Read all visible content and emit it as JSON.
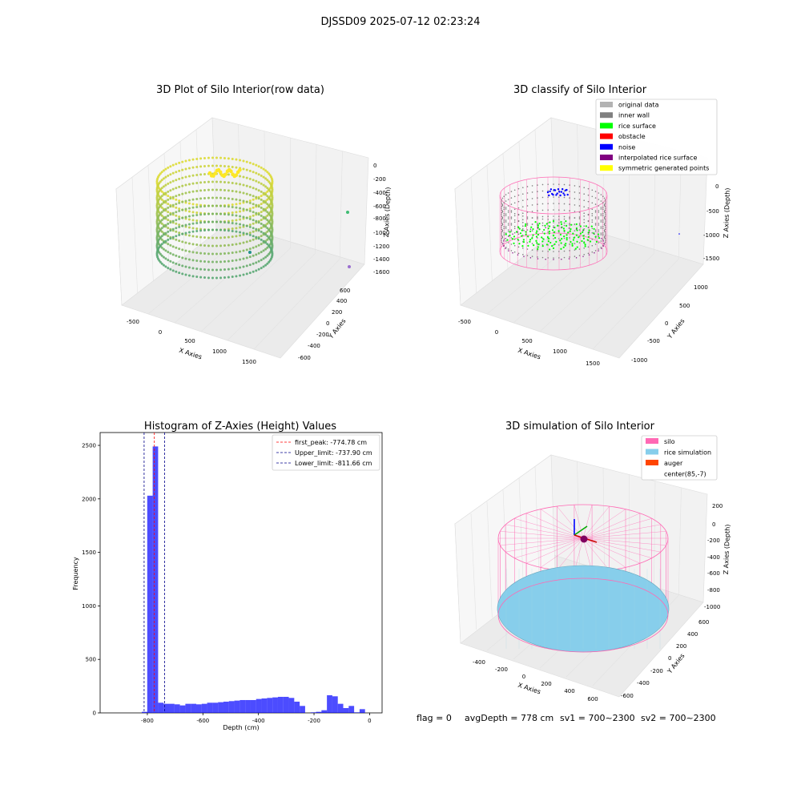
{
  "figure": {
    "suptitle": "DJSSD09 2025-07-12 02:23:24"
  },
  "status": {
    "flag": "flag = 0",
    "avg_depth": "avgDepth = 778 cm",
    "sv1": "sv1 = 700~2300",
    "sv2": "sv2 = 700~2300"
  },
  "colors": {
    "viridis_low": "#21918c",
    "viridis_high": "#fde725",
    "legend_original": "#b3b3b3",
    "legend_inner_wall": "#808080",
    "legend_rice_surface": "#00ff00",
    "legend_obstacle": "#ff0000",
    "legend_noise": "#0000ff",
    "legend_interpolated": "#800080",
    "legend_symmetric": "#ffff00",
    "silo": "#ff69b4",
    "rice_sim": "#87ceeb",
    "auger": "#ff4500",
    "hist_bar": "#0000ff",
    "first_peak_line": "#ff0000",
    "limit_line": "#00008b"
  },
  "chart_data": [
    {
      "type": "scatter",
      "title": "3D Plot of Silo Interior(row data)",
      "xlabel": "X Axies",
      "ylabel": "Y Axies",
      "zlabel": "Z Axies (Depth)",
      "xticks": [
        "-500",
        "0",
        "500",
        "1000",
        "1500"
      ],
      "yticks": [
        "-600",
        "-400",
        "-200",
        "0",
        "200",
        "400",
        "600"
      ],
      "zticks": [
        "0",
        "-200",
        "-400",
        "-600",
        "-800",
        "-1000",
        "-1200",
        "-1400",
        "-1600"
      ],
      "xlim": [
        -700,
        1800
      ],
      "ylim": [
        -650,
        650
      ],
      "zlim": [
        -1650,
        100
      ],
      "colormap": "viridis"
    },
    {
      "type": "scatter",
      "title": "3D classify of Silo Interior",
      "xlabel": "X Axies",
      "ylabel": "Y Axies",
      "zlabel": "Z Axies (Depth)",
      "xticks": [
        "-500",
        "0",
        "500",
        "1000",
        "1500"
      ],
      "yticks": [
        "-1000",
        "-500",
        "0",
        "500",
        "1000"
      ],
      "zticks": [
        "0",
        "-500",
        "-1000",
        "-1500"
      ],
      "legend": [
        "original data",
        "inner wall",
        "rice surface",
        "obstacle",
        "noise",
        "interpolated rice surface",
        "symmetric generated points"
      ],
      "legend_loc": "upper right"
    },
    {
      "type": "bar",
      "title": "Histogram of Z-Axies (Height) Values",
      "xlabel": "Depth (cm)",
      "ylabel": "Frequency",
      "xlim": [
        -970,
        45
      ],
      "ylim": [
        0,
        2620
      ],
      "xticks": [
        -800,
        -600,
        -400,
        -200,
        0
      ],
      "yticks": [
        0,
        500,
        1000,
        1500,
        2000,
        2500
      ],
      "bin_width": 19.6,
      "bin_starts": [
        -820,
        -800.4,
        -780.8,
        -761.2,
        -741.6,
        -722,
        -702.4,
        -682.8,
        -663.2,
        -643.6,
        -624,
        -604.4,
        -584.8,
        -565.2,
        -545.6,
        -526,
        -506.4,
        -486.8,
        -467.2,
        -447.6,
        -428,
        -408.4,
        -388.8,
        -369.2,
        -349.6,
        -330,
        -310.4,
        -290.8,
        -271.2,
        -251.6,
        -232,
        -212.4,
        -192.8,
        -173.2,
        -153.6,
        -134,
        -114.4,
        -94.8,
        -75.2,
        -55.6,
        -36,
        -16.4
      ],
      "values": [
        10,
        2030,
        2490,
        95,
        85,
        85,
        80,
        70,
        85,
        85,
        80,
        85,
        95,
        95,
        100,
        105,
        110,
        115,
        120,
        120,
        120,
        130,
        135,
        140,
        145,
        150,
        150,
        140,
        105,
        65,
        0,
        5,
        10,
        25,
        165,
        155,
        85,
        45,
        65,
        5,
        35,
        0
      ],
      "vlines": [
        {
          "label": "first_peak: -774.78 cm",
          "x": -774.78,
          "color": "#ff0000"
        },
        {
          "label": "Upper_limit: -737.90 cm",
          "x": -737.9,
          "color": "#00008b"
        },
        {
          "label": "Lower_limit: -811.66 cm",
          "x": -811.66,
          "color": "#00008b"
        }
      ],
      "legend_loc": "upper right"
    },
    {
      "type": "scatter",
      "title": "3D simulation of Silo Interior",
      "xlabel": "X Axies",
      "ylabel": "Y Axies",
      "zlabel": "Z Axies (Depth)",
      "xticks": [
        "-400",
        "-200",
        "0",
        "200",
        "400",
        "600"
      ],
      "yticks": [
        "-600",
        "-400",
        "-200",
        "0",
        "200",
        "400",
        "600"
      ],
      "zticks": [
        "200",
        "0",
        "-200",
        "-400",
        "-600",
        "-800",
        "-1000"
      ],
      "legend": [
        "silo",
        "rice simulation",
        "auger",
        "center(85,-7)"
      ],
      "legend_loc": "upper right"
    }
  ]
}
